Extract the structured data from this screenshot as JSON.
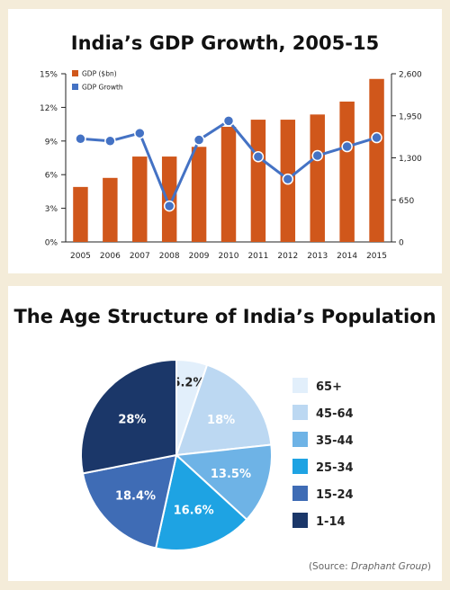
{
  "chart_data": [
    {
      "type": "bar+line",
      "title": "India’s GDP Growth, 2005-15",
      "categories": [
        "2005",
        "2006",
        "2007",
        "2008",
        "2009",
        "2010",
        "2011",
        "2012",
        "2013",
        "2014",
        "2015"
      ],
      "series": [
        {
          "name": "GDP ($bn)",
          "type": "bar",
          "axis": "right",
          "color": "#d0571b",
          "values": [
            850,
            990,
            1320,
            1320,
            1470,
            1780,
            1890,
            1890,
            1970,
            2170,
            2520
          ]
        },
        {
          "name": "GDP Growth",
          "type": "line",
          "axis": "left",
          "color": "#4472c4",
          "values": [
            9.2,
            9.0,
            9.7,
            3.2,
            9.1,
            10.8,
            7.6,
            5.6,
            7.7,
            8.5,
            9.3
          ]
        }
      ],
      "y_left": {
        "ticks": [
          "0%",
          "3%",
          "6%",
          "9%",
          "12%",
          "15%"
        ],
        "range": [
          0,
          15
        ]
      },
      "y_right": {
        "ticks": [
          "0",
          "650",
          "1,300",
          "1,950",
          "2,600"
        ],
        "range": [
          0,
          2600
        ]
      },
      "legend": "top-left"
    },
    {
      "type": "pie",
      "title": "The Age Structure of India’s Population",
      "slices": [
        {
          "label": "65+",
          "value": 5.2,
          "display": "5.2%",
          "color": "#e2effb",
          "text_color": "#222222"
        },
        {
          "label": "45-64",
          "value": 18,
          "display": "18%",
          "color": "#bcd8f2",
          "text_color": "#ffffff"
        },
        {
          "label": "35-44",
          "value": 13.5,
          "display": "13.5%",
          "color": "#6eb3e6",
          "text_color": "#ffffff"
        },
        {
          "label": "25-34",
          "value": 16.6,
          "display": "16.6%",
          "color": "#1ea3e3",
          "text_color": "#ffffff"
        },
        {
          "label": "15-24",
          "value": 18.4,
          "display": "18.4%",
          "color": "#3f6cb5",
          "text_color": "#ffffff"
        },
        {
          "label": "1-14",
          "value": 28,
          "display": "28%",
          "color": "#1b3769",
          "text_color": "#ffffff"
        }
      ],
      "legend": "right"
    }
  ],
  "source": {
    "prefix": "(Source: ",
    "name": "Draphant Group",
    "suffix": ")"
  }
}
